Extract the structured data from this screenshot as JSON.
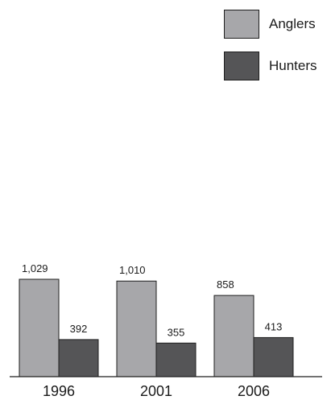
{
  "chart_data": {
    "type": "bar",
    "categories": [
      "1996",
      "2001",
      "2006"
    ],
    "series": [
      {
        "name": "Anglers",
        "values": [
          1029,
          1010,
          858
        ],
        "value_labels": [
          "1,029",
          "1,010",
          "858"
        ],
        "color": "#a7a7aa"
      },
      {
        "name": "Hunters",
        "values": [
          392,
          355,
          413
        ],
        "value_labels": [
          "392",
          "355",
          "413"
        ],
        "color": "#555557"
      }
    ],
    "ylim": [
      0,
      1029
    ],
    "grid": false,
    "legend_position": "top-right",
    "axis_color": "#1f1f1f"
  }
}
